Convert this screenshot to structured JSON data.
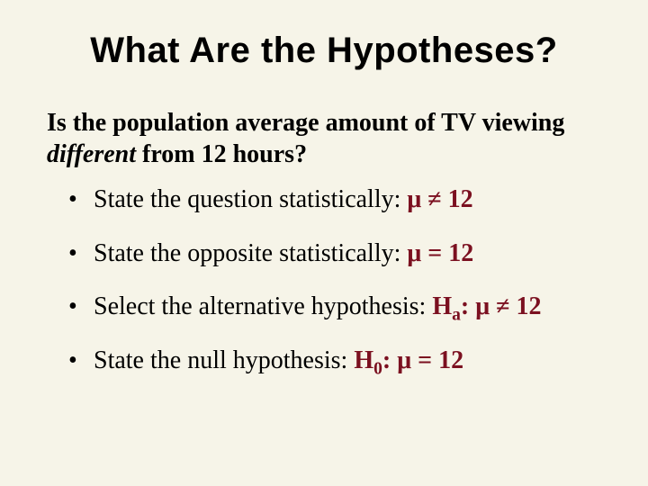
{
  "background_color": "#f6f4e8",
  "text_color": "#000000",
  "accent_color": "#7b1020",
  "title": {
    "text": "What Are the Hypotheses?",
    "font_family": "Arial",
    "font_size_pt": 40,
    "font_weight": "bold",
    "align": "center"
  },
  "question": {
    "pre": "Is the population average amount of TV viewing ",
    "emph": "different",
    "post": " from 12 hours?",
    "font_size_pt": 28,
    "font_weight": "bold"
  },
  "bullets": [
    {
      "lead": "State the question statistically: ",
      "sym_pre": "μ",
      "rel": " ≠ ",
      "val": "12",
      "h_label": "",
      "h_sub": ""
    },
    {
      "lead": "State the opposite statistically: ",
      "sym_pre": "μ",
      "rel": " = ",
      "val": "12",
      "h_label": "",
      "h_sub": ""
    },
    {
      "lead": "Select the alternative hypothesis: ",
      "h_label": "H",
      "h_sub": "a",
      "h_post": ": ",
      "sym_pre": "μ",
      "rel": " ≠ ",
      "val": "12"
    },
    {
      "lead": "State the null hypothesis: ",
      "h_label": "H",
      "h_sub": "0",
      "h_post": ": ",
      "sym_pre": "μ",
      "rel": " = ",
      "val": "12"
    }
  ],
  "bullet_font_size_pt": 28
}
